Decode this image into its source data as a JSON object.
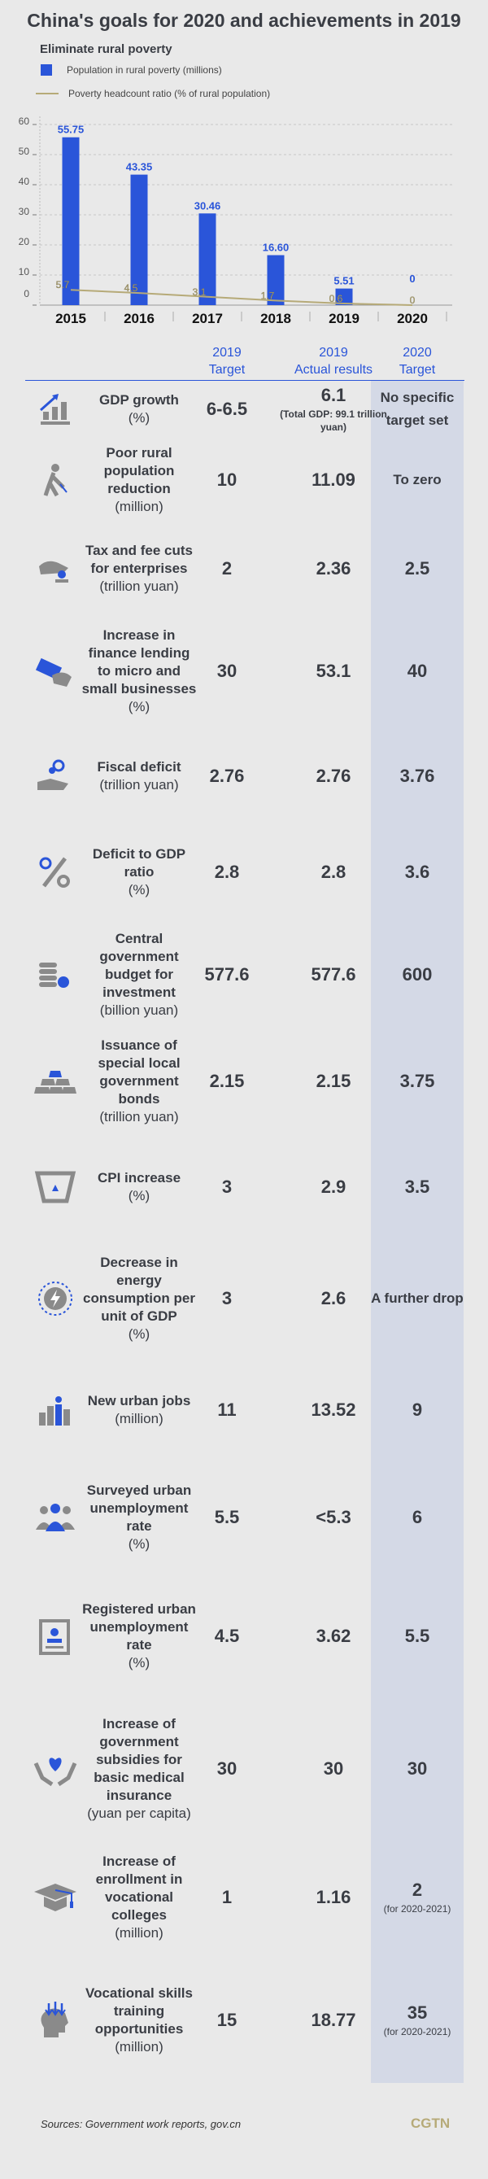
{
  "title": "China's goals for 2020 and achievements in 2019",
  "colors": {
    "bar": "#2a55d9",
    "line": "#b6aa78",
    "highlight": "#d4d9e6",
    "header": "#2a55d9"
  },
  "chart_data": {
    "type": "bar",
    "title": "Eliminate rural poverty",
    "categories": [
      "2015",
      "2016",
      "2017",
      "2018",
      "2019",
      "2020"
    ],
    "series": [
      {
        "name": "Population in rural poverty (millions)",
        "type": "bar",
        "values": [
          55.75,
          43.35,
          30.46,
          16.6,
          5.51,
          0
        ],
        "labels": [
          "55.75",
          "43.35",
          "30.46",
          "16.60",
          "5.51",
          "0"
        ]
      },
      {
        "name": "Poverty headcount ratio (% of rural population)",
        "type": "line",
        "values": [
          5.7,
          4.5,
          3.1,
          1.7,
          0.6,
          0
        ],
        "labels": [
          "5.7",
          "4.5",
          "3.1",
          "1.7",
          "0.6",
          "0"
        ]
      }
    ],
    "yticks": [
      "0",
      "10",
      "20",
      "30",
      "40",
      "50",
      "60"
    ],
    "ylim": [
      0,
      60
    ],
    "grid": true,
    "legend": "top-left"
  },
  "table": {
    "headers": [
      {
        "line1": "2019",
        "line2": "Target"
      },
      {
        "line1": "2019",
        "line2": "Actual results"
      },
      {
        "line1": "2020",
        "line2": "Target"
      }
    ],
    "rows": [
      {
        "icon": "chart-growth-icon",
        "label": "GDP growth",
        "unit": "(%)",
        "t2019": "6-6.5",
        "a2019": "6.1",
        "a2019_note": "(Total GDP: 99.1 trillion yuan)",
        "t2020": "No specific target set"
      },
      {
        "icon": "farmer-icon",
        "label": "Poor rural population reduction",
        "unit": "(million)",
        "t2019": "10",
        "a2019": "11.09",
        "t2020": "To zero"
      },
      {
        "icon": "hand-coin-icon",
        "label": "Tax and fee cuts for enterprises",
        "unit": "(trillion yuan)",
        "t2019": "2",
        "a2019": "2.36",
        "t2020": "2.5"
      },
      {
        "icon": "money-hand-icon",
        "label": "Increase in finance lending to micro and small businesses",
        "unit": "(%)",
        "t2019": "30",
        "a2019": "53.1",
        "t2020": "40"
      },
      {
        "icon": "hand-coins-icon",
        "label": "Fiscal deficit",
        "unit": "(trillion yuan)",
        "t2019": "2.76",
        "a2019": "2.76",
        "t2020": "3.76"
      },
      {
        "icon": "percent-icon",
        "label": "Deficit to GDP ratio",
        "unit": "(%)",
        "t2019": "2.8",
        "a2019": "2.8",
        "t2020": "3.6"
      },
      {
        "icon": "coin-stack-icon",
        "label": "Central government budget for investment",
        "unit": "(billion yuan)",
        "t2019": "577.6",
        "a2019": "577.6",
        "t2020": "600"
      },
      {
        "icon": "gold-bars-icon",
        "label": "Issuance of special local government bonds",
        "unit": "(trillion yuan)",
        "t2019": "2.15",
        "a2019": "2.15",
        "t2020": "3.75"
      },
      {
        "icon": "cart-icon",
        "label": "CPI increase",
        "unit": "(%)",
        "t2019": "3",
        "a2019": "2.9",
        "t2020": "3.5"
      },
      {
        "icon": "energy-icon",
        "label": "Decrease in energy consumption per unit of GDP",
        "unit": "(%)",
        "t2019": "3",
        "a2019": "2.6",
        "t2020": "A further drop"
      },
      {
        "icon": "worker-bars-icon",
        "label": "New urban jobs",
        "unit": "(million)",
        "t2019": "11",
        "a2019": "13.52",
        "t2020": "9"
      },
      {
        "icon": "people-group-icon",
        "label": "Surveyed urban unemployment rate",
        "unit": "(%)",
        "t2019": "5.5",
        "a2019": "<5.3",
        "t2020": "6"
      },
      {
        "icon": "id-card-icon",
        "label": "Registered urban unemployment rate",
        "unit": "(%)",
        "t2019": "4.5",
        "a2019": "3.62",
        "t2020": "5.5"
      },
      {
        "icon": "heart-hands-icon",
        "label": "Increase of government subsidies for basic medical insurance",
        "unit": "(yuan per capita)",
        "t2019": "30",
        "a2019": "30",
        "t2020": "30"
      },
      {
        "icon": "graduation-cap-icon",
        "label": "Increase of enrollment in vocational colleges",
        "unit": "(million)",
        "t2019": "1",
        "a2019": "1.16",
        "t2020": "2",
        "t2020_note": "(for 2020-2021)"
      },
      {
        "icon": "head-arrows-icon",
        "label": "Vocational skills training opportunities",
        "unit": "(million)",
        "t2019": "15",
        "a2019": "18.77",
        "t2020": "35",
        "t2020_note": "(for 2020-2021)"
      }
    ]
  },
  "footer": {
    "sources": "Sources: Government work reports, gov.cn",
    "logo": "CGTN"
  }
}
